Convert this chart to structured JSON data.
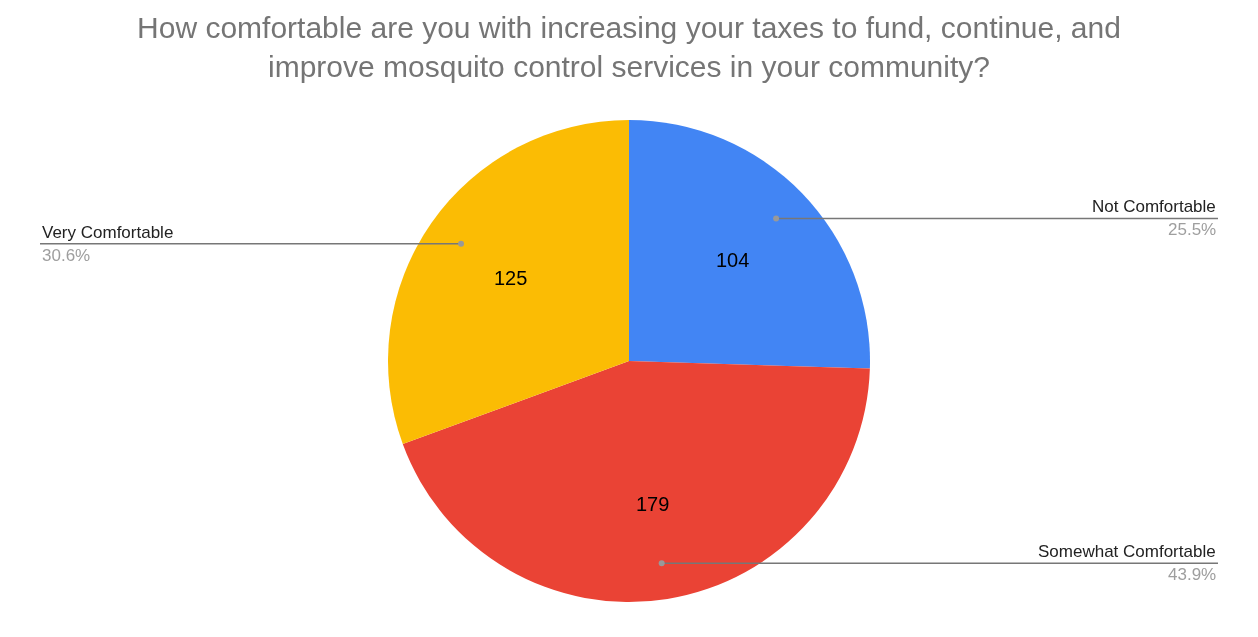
{
  "chart_data": {
    "type": "pie",
    "title": "How comfortable are you with increasing your taxes to fund, continue, and improve mosquito control services in your community?",
    "categories": [
      "Not Comfortable",
      "Somewhat Comfortable",
      "Very Comfortable"
    ],
    "values": [
      25.5,
      43.9,
      30.6
    ],
    "colors": [
      "#4285f4",
      "#ea4335",
      "#fbbc04"
    ],
    "value_labels": [
      "25.5%",
      "43.9%",
      "30.6%"
    ],
    "annotations": [
      "104",
      "179",
      "125"
    ],
    "legend": false
  }
}
